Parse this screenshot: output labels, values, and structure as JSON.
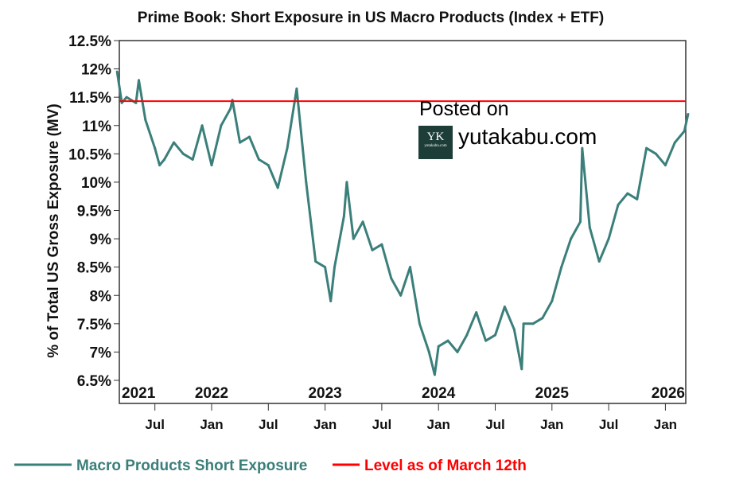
{
  "chart_data": {
    "type": "line",
    "title": "Prime Book: Short Exposure in US Macro Products (Index + ETF)",
    "xlabel": "",
    "ylabel": "% of Total US Gross Exposure (MV)",
    "ylim": [
      6.5,
      12.5
    ],
    "yticks": [
      "12.5%",
      "12%",
      "11.5%",
      "11%",
      "10.5%",
      "10%",
      "9.5%",
      "9%",
      "8.5%",
      "8%",
      "7.5%",
      "7%",
      "6.5%"
    ],
    "year_labels": [
      "2021",
      "2022",
      "2023",
      "2024",
      "2025",
      "2026"
    ],
    "month_labels": [
      "Jul",
      "Jan",
      "Jul",
      "Jan",
      "Jul",
      "Jan",
      "Jul",
      "Jan",
      "Jul",
      "Jan"
    ],
    "grid": false,
    "legend_position": "bottom",
    "series": [
      {
        "name": "Macro Products Short Exposure",
        "color": "#3b7f7a",
        "x": [
          "2021-03",
          "2021-03.5",
          "2021-04",
          "2021-05",
          "2021-05.3",
          "2021-06",
          "2021-07",
          "2021-07.5",
          "2021-08",
          "2021-09",
          "2021-10",
          "2021-11",
          "2021-12",
          "2022-01",
          "2022-02",
          "2022-03",
          "2022-03.2",
          "2022-04",
          "2022-05",
          "2022-06",
          "2022-07",
          "2022-08",
          "2022-09",
          "2022-10",
          "2022-11",
          "2022-12",
          "2023-01",
          "2023-01.6",
          "2023-02",
          "2023-03",
          "2023-03.3",
          "2023-04",
          "2023-05",
          "2023-06",
          "2023-07",
          "2023-08",
          "2023-09",
          "2023-10",
          "2023-11",
          "2023-12",
          "2023-12.6",
          "2024-01",
          "2024-02",
          "2024-03",
          "2024-04",
          "2024-05",
          "2024-06",
          "2024-07",
          "2024-08",
          "2024-09",
          "2024-09.8",
          "2024-10",
          "2024-11",
          "2024-12",
          "2025-01",
          "2025-02",
          "2025-03",
          "2025-04",
          "2025-04.2",
          "2025-05",
          "2025-06",
          "2025-07",
          "2025-08",
          "2025-09",
          "2025-10",
          "2025-11",
          "2025-12",
          "2026-01",
          "2026-02",
          "2026-03",
          "2026-03.4"
        ],
        "values": [
          11.95,
          11.4,
          11.5,
          11.4,
          11.8,
          11.1,
          10.6,
          10.3,
          10.4,
          10.7,
          10.5,
          10.4,
          11.0,
          10.3,
          11.0,
          11.3,
          11.45,
          10.7,
          10.8,
          10.4,
          10.3,
          9.9,
          10.6,
          11.65,
          10.0,
          8.6,
          8.5,
          7.9,
          8.5,
          9.4,
          10.0,
          9.0,
          9.3,
          8.8,
          8.9,
          8.3,
          8.0,
          8.5,
          7.5,
          7.0,
          6.6,
          7.1,
          7.2,
          7.0,
          7.3,
          7.7,
          7.2,
          7.3,
          7.8,
          7.4,
          6.7,
          7.5,
          7.5,
          7.6,
          7.9,
          8.5,
          9.0,
          9.3,
          10.6,
          9.2,
          8.6,
          9.0,
          9.6,
          9.8,
          9.7,
          10.6,
          10.5,
          10.3,
          10.7,
          10.9,
          11.2
        ]
      },
      {
        "name": "Level as of March 12th",
        "color": "#ff0000",
        "value": 11.43
      }
    ]
  },
  "watermark": {
    "line1": "Posted on",
    "line2": "yutakabu.com",
    "logo_text": "YK",
    "logo_sub": "yutakabu.com"
  }
}
